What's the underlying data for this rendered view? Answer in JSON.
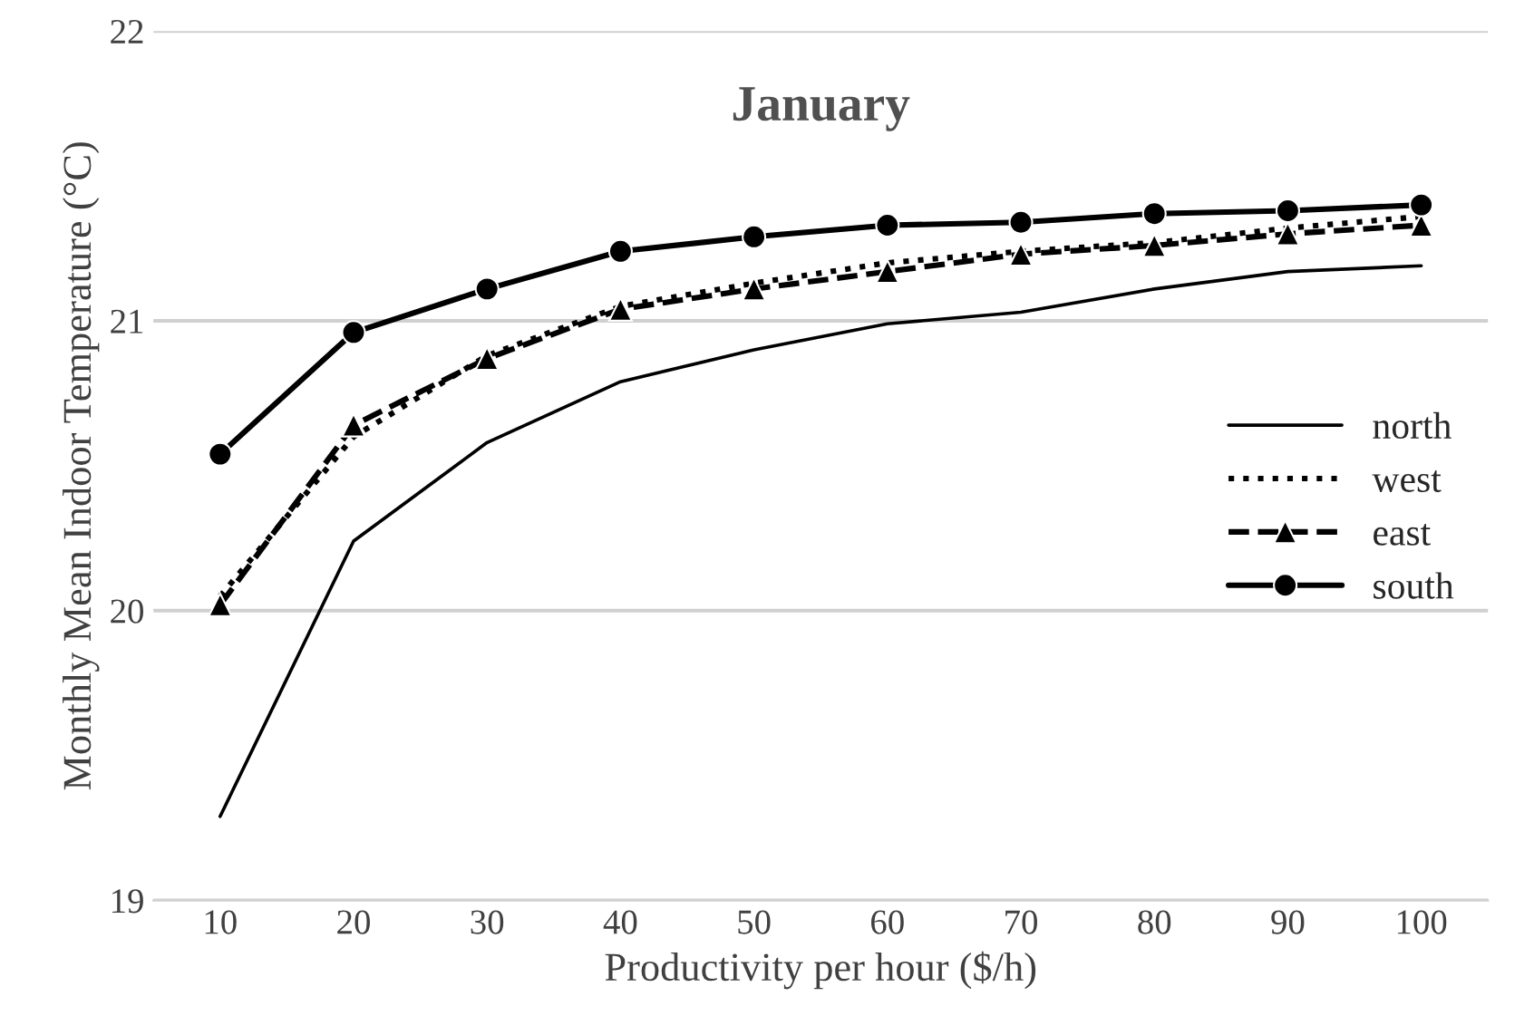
{
  "chart_data": {
    "type": "line",
    "title": "January",
    "xlabel": "Productivity per hour ($/h)",
    "ylabel": "Monthly Mean Indoor Temperature (°C)",
    "x": [
      10,
      20,
      30,
      40,
      50,
      60,
      70,
      80,
      90,
      100
    ],
    "series": [
      {
        "name": "north",
        "color": "#000000",
        "marker": "none",
        "line_style": "solid",
        "values": [
          19.29,
          20.24,
          20.58,
          20.79,
          20.9,
          20.99,
          21.03,
          21.11,
          21.17,
          21.19
        ]
      },
      {
        "name": "west",
        "color": "#000000",
        "marker": "none",
        "line_style": "dotted",
        "values": [
          20.05,
          20.6,
          20.88,
          21.05,
          21.13,
          21.2,
          21.24,
          21.27,
          21.32,
          21.36
        ]
      },
      {
        "name": "east",
        "color": "#000000",
        "marker": "triangle",
        "line_style": "dashed",
        "values": [
          20.02,
          20.64,
          20.87,
          21.04,
          21.11,
          21.17,
          21.23,
          21.26,
          21.3,
          21.33
        ]
      },
      {
        "name": "south",
        "color": "#000000",
        "marker": "circle",
        "line_style": "solid",
        "values": [
          20.54,
          20.96,
          21.11,
          21.24,
          21.29,
          21.33,
          21.34,
          21.37,
          21.38,
          21.4
        ]
      }
    ],
    "xlim": [
      5,
      105
    ],
    "xticks": [
      10,
      20,
      30,
      40,
      50,
      60,
      70,
      80,
      90,
      100
    ],
    "ylim": [
      19,
      22
    ],
    "yticks": [
      19,
      20,
      21,
      22
    ],
    "grid": "y",
    "legend": "right"
  }
}
